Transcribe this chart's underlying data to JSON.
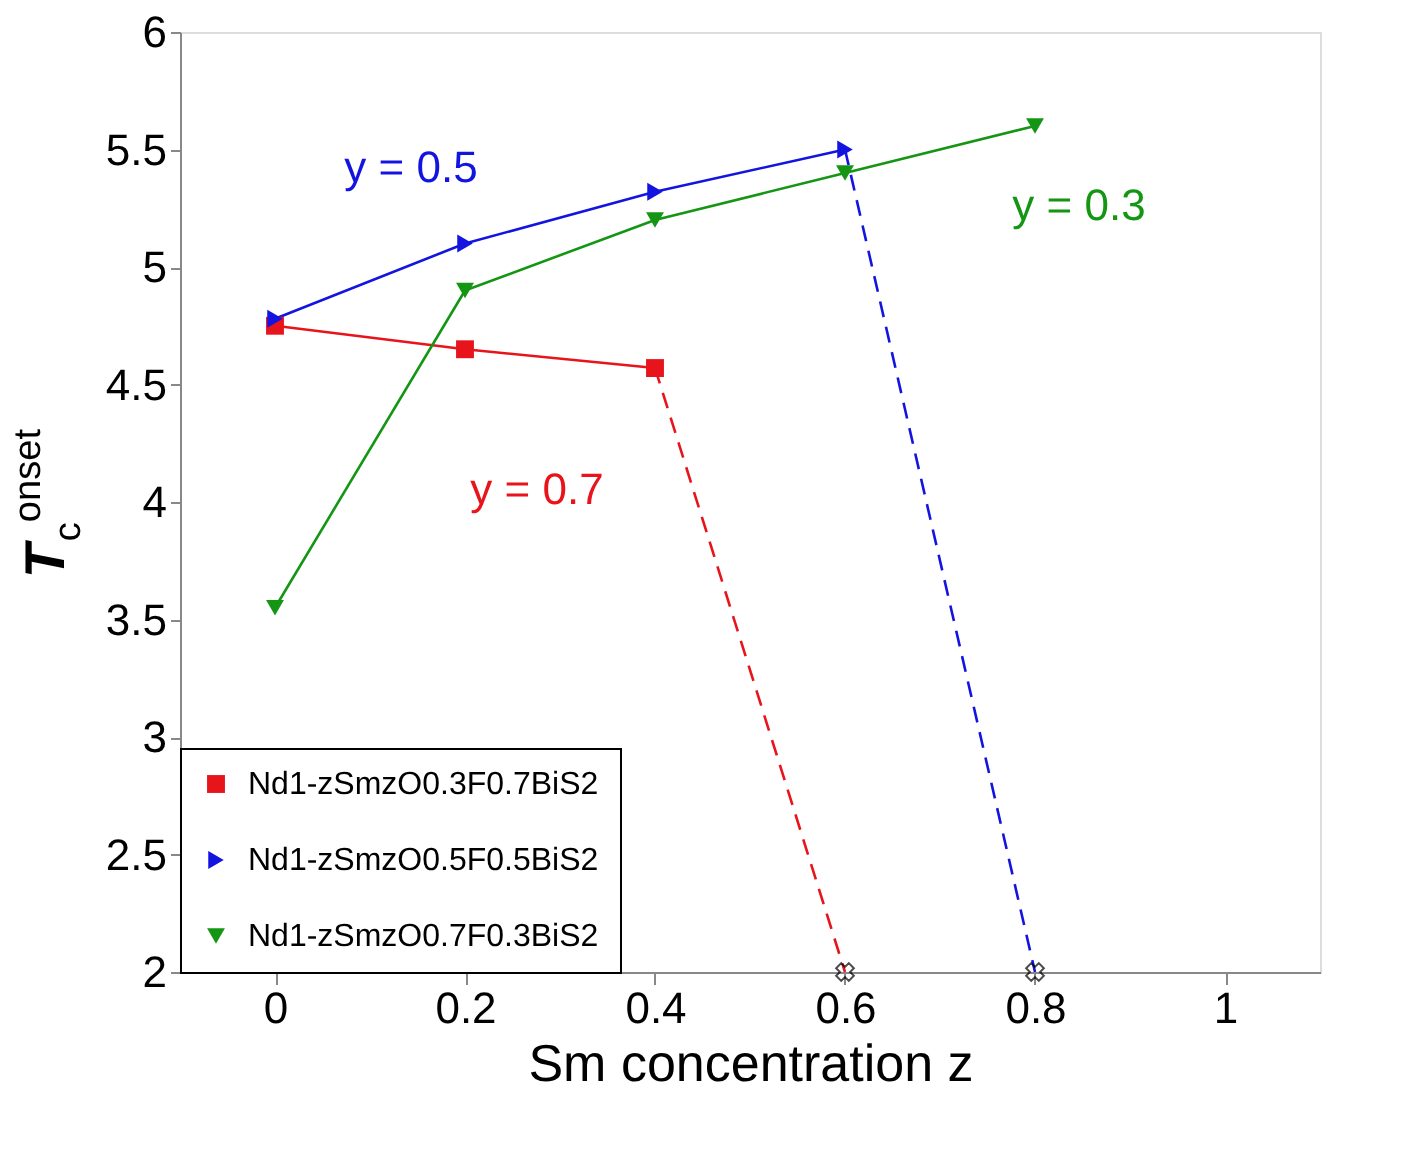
{
  "chart_data": {
    "type": "line",
    "xlabel": "Sm concentration z",
    "ylabel": "T$_{c}$$^{onset}$",
    "xlim": [
      -0.1,
      1.1
    ],
    "xticks": [
      0,
      0.2,
      0.4,
      0.6,
      0.8,
      1
    ],
    "ylim": [
      2,
      6
    ],
    "yticks": [
      2,
      2.5,
      3,
      3.5,
      4,
      4.5,
      5,
      5.5,
      6
    ],
    "grid": false,
    "legend": "bottom left",
    "series": [
      {
        "name": "Nd1-zSmzO0.3F0.7BiS2",
        "color": "#e8141c",
        "x": [
          0,
          0.2,
          0.4
        ],
        "values": [
          4.75,
          4.65,
          4.57
        ],
        "marker": "square",
        "line_style": "solid"
      },
      {
        "name": "Nd1-zSmzO0.5F0.5BiS2",
        "color": "#1414e0",
        "x": [
          0,
          0.2,
          0.4,
          0.6
        ],
        "values": [
          4.78,
          5.1,
          5.32,
          5.5
        ],
        "marker": "triangle-right",
        "line_style": "solid"
      },
      {
        "name": "Nd1-zSmzO0.7F0.3BiS2",
        "color": "#149614",
        "x": [
          0,
          0.2,
          0.4,
          0.6,
          0.8
        ],
        "values": [
          3.55,
          4.9,
          5.2,
          5.4,
          5.6
        ],
        "marker": "triangle-down",
        "line_style": "solid"
      },
      {
        "color": "#e8141c",
        "x": [
          0.4,
          0.6
        ],
        "values": [
          4.57,
          2
        ],
        "marker": "none",
        "line_style": "dashed"
      },
      {
        "color": "#1414e0",
        "x": [
          0.6,
          0.8
        ],
        "values": [
          5.5,
          2
        ],
        "marker": "none",
        "line_style": "dashed"
      },
      {
        "type": "scatter",
        "color": "#000000",
        "x": [
          0.6,
          0.8
        ],
        "values": [
          2,
          2
        ],
        "marker": "cross"
      }
    ],
    "annotations": [
      {
        "text": "y = 0.5",
        "x": 0.2,
        "y": 5.1
      },
      {
        "text": "y = 0.3",
        "x": 0.8,
        "y": 5.6
      },
      {
        "text": "y = 0.7",
        "x": 0.4,
        "y": 4.57
      }
    ]
  }
}
